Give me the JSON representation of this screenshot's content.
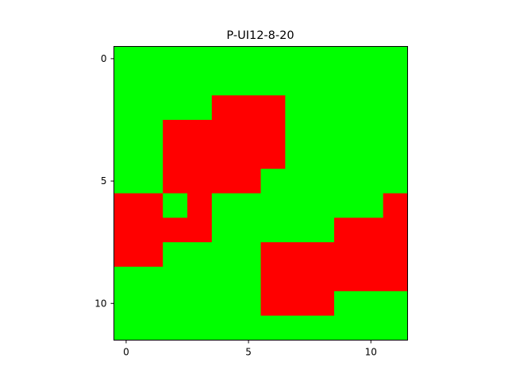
{
  "chart_data": {
    "type": "heatmap",
    "title": "P-UI12-8-20",
    "xlabel": "",
    "ylabel": "",
    "rows": 12,
    "cols": 12,
    "xticks": [
      0,
      5,
      10
    ],
    "yticks": [
      0,
      5,
      10
    ],
    "xlim": [
      -0.5,
      11.5
    ],
    "ylim": [
      11.5,
      -0.5
    ],
    "grid": false,
    "colors": {
      "0": "#00ff00",
      "1": "#ff0000"
    },
    "matrix": [
      [
        0,
        0,
        0,
        0,
        0,
        0,
        0,
        0,
        0,
        0,
        0,
        0
      ],
      [
        0,
        0,
        0,
        0,
        0,
        0,
        0,
        0,
        0,
        0,
        0,
        0
      ],
      [
        0,
        0,
        0,
        0,
        1,
        1,
        1,
        0,
        0,
        0,
        0,
        0
      ],
      [
        0,
        0,
        1,
        1,
        1,
        1,
        1,
        0,
        0,
        0,
        0,
        0
      ],
      [
        0,
        0,
        1,
        1,
        1,
        1,
        1,
        0,
        0,
        0,
        0,
        0
      ],
      [
        0,
        0,
        1,
        1,
        1,
        1,
        0,
        0,
        0,
        0,
        0,
        0
      ],
      [
        1,
        1,
        0,
        1,
        0,
        0,
        0,
        0,
        0,
        0,
        0,
        1
      ],
      [
        1,
        1,
        1,
        1,
        0,
        0,
        0,
        0,
        0,
        1,
        1,
        1
      ],
      [
        1,
        1,
        0,
        0,
        0,
        0,
        1,
        1,
        1,
        1,
        1,
        1
      ],
      [
        0,
        0,
        0,
        0,
        0,
        0,
        1,
        1,
        1,
        1,
        1,
        1
      ],
      [
        0,
        0,
        0,
        0,
        0,
        0,
        1,
        1,
        1,
        0,
        0,
        0
      ],
      [
        0,
        0,
        0,
        0,
        0,
        0,
        0,
        0,
        0,
        0,
        0,
        0
      ]
    ]
  }
}
